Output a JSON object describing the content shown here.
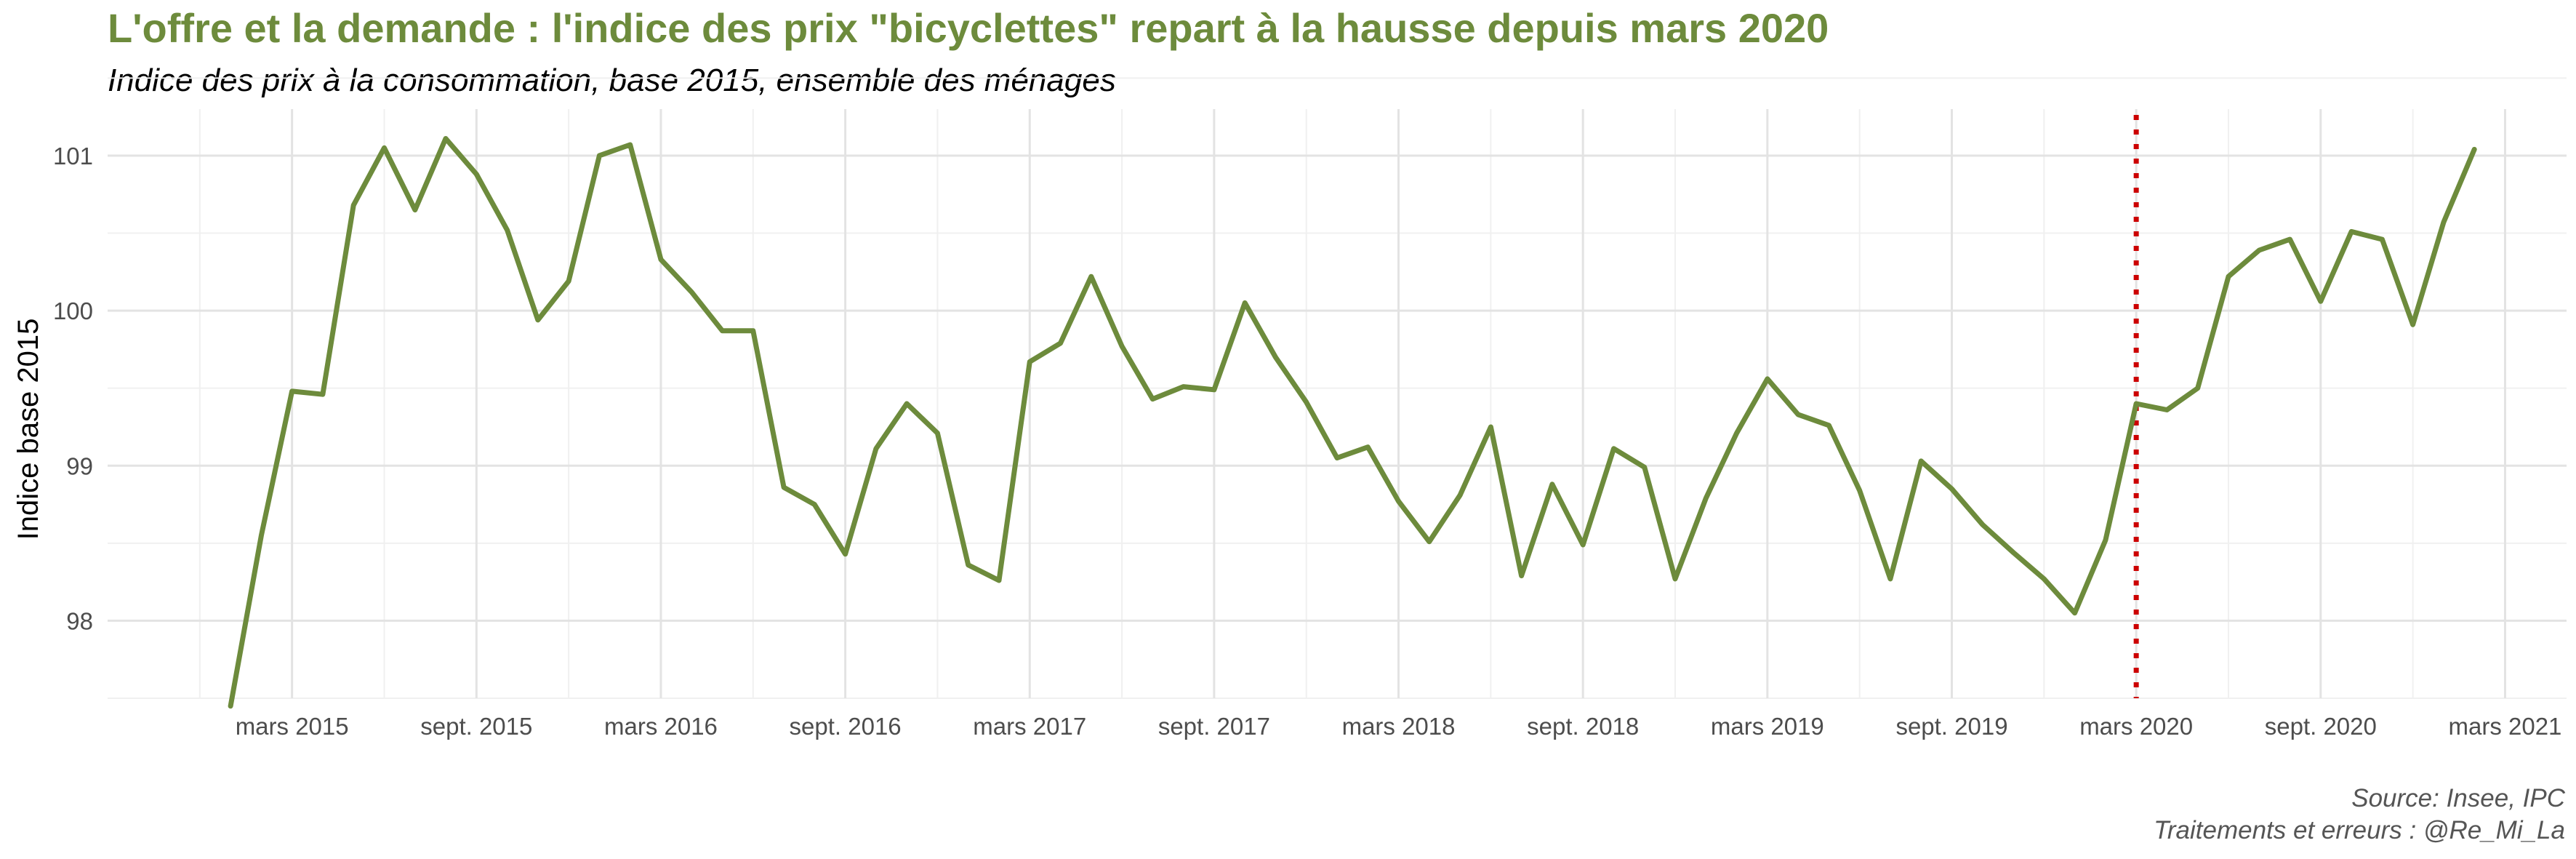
{
  "title": "L'offre et la demande : l'indice des prix \"bicyclettes\" repart à la hausse depuis mars 2020",
  "subtitle": "Indice des prix à la consommation, base 2015, ensemble des ménages",
  "source": "Source: Insee, IPC",
  "credits": "Traitements et erreurs : @Re_Mi_La",
  "colors": {
    "line": "#6d8b3c",
    "title": "#6d8b3c",
    "marker": "#cc0000",
    "grid_major": "#e3e3e3",
    "grid_minor": "#f0f0f0"
  },
  "chart_data": {
    "type": "line",
    "title": "L'offre et la demande : l'indice des prix \"bicyclettes\" repart à la hausse depuis mars 2020",
    "subtitle": "Indice des prix à la consommation, base 2015, ensemble des ménages",
    "xlabel": "",
    "ylabel": "Indice base 2015",
    "x_axis_type": "monthly date",
    "xlim": [
      "2014-09",
      "2021-05"
    ],
    "ylim": [
      97.5,
      101.3
    ],
    "y_ticks": [
      98,
      99,
      100,
      101
    ],
    "x_ticks": [
      {
        "date": "2015-03",
        "label": "mars 2015"
      },
      {
        "date": "2015-09",
        "label": "sept. 2015"
      },
      {
        "date": "2016-03",
        "label": "mars 2016"
      },
      {
        "date": "2016-09",
        "label": "sept. 2016"
      },
      {
        "date": "2017-03",
        "label": "mars 2017"
      },
      {
        "date": "2017-09",
        "label": "sept. 2017"
      },
      {
        "date": "2018-03",
        "label": "mars 2018"
      },
      {
        "date": "2018-09",
        "label": "sept. 2018"
      },
      {
        "date": "2019-03",
        "label": "mars 2019"
      },
      {
        "date": "2019-09",
        "label": "sept. 2019"
      },
      {
        "date": "2020-03",
        "label": "mars 2020"
      },
      {
        "date": "2020-09",
        "label": "sept. 2020"
      },
      {
        "date": "2021-03",
        "label": "mars 2021"
      }
    ],
    "grid": true,
    "legend": "none",
    "reference_line": {
      "date": "2020-03",
      "style": "dotted",
      "color": "#cc0000"
    },
    "series": [
      {
        "x": [
          "2015-01",
          "2015-02",
          "2015-03",
          "2015-04",
          "2015-05",
          "2015-06",
          "2015-07",
          "2015-08",
          "2015-09",
          "2015-10",
          "2015-11",
          "2015-12",
          "2016-01",
          "2016-02",
          "2016-03",
          "2016-04",
          "2016-05",
          "2016-06",
          "2016-07",
          "2016-08",
          "2016-09",
          "2016-10",
          "2016-11",
          "2016-12",
          "2017-01",
          "2017-02",
          "2017-03",
          "2017-04",
          "2017-05",
          "2017-06",
          "2017-07",
          "2017-08",
          "2017-09",
          "2017-10",
          "2017-11",
          "2017-12",
          "2018-01",
          "2018-02",
          "2018-03",
          "2018-04",
          "2018-05",
          "2018-06",
          "2018-07",
          "2018-08",
          "2018-09",
          "2018-10",
          "2018-11",
          "2018-12",
          "2019-01",
          "2019-02",
          "2019-03",
          "2019-04",
          "2019-05",
          "2019-06",
          "2019-07",
          "2019-08",
          "2019-09",
          "2019-10",
          "2019-11",
          "2019-12",
          "2020-01",
          "2020-02",
          "2020-03",
          "2020-04",
          "2020-05",
          "2020-06",
          "2020-07",
          "2020-08",
          "2020-09",
          "2020-10",
          "2020-11",
          "2020-12",
          "2021-01",
          "2021-02"
        ],
        "values": [
          97.45,
          98.55,
          99.48,
          99.46,
          100.68,
          101.05,
          100.65,
          101.11,
          100.88,
          100.52,
          99.94,
          100.19,
          101.0,
          101.07,
          100.33,
          100.12,
          99.87,
          99.87,
          98.86,
          98.75,
          98.43,
          99.11,
          99.4,
          99.21,
          98.36,
          98.26,
          99.67,
          99.79,
          100.22,
          99.77,
          99.43,
          99.51,
          99.49,
          100.05,
          99.7,
          99.41,
          99.05,
          99.12,
          98.77,
          98.51,
          98.81,
          99.25,
          98.29,
          98.88,
          98.49,
          99.11,
          98.99,
          98.27,
          98.79,
          99.21,
          99.56,
          99.33,
          99.26,
          98.84,
          98.27,
          99.03,
          98.85,
          98.62,
          98.44,
          98.27,
          98.05,
          98.52,
          99.4,
          99.36,
          99.5,
          100.22,
          100.39,
          100.46,
          100.06,
          100.51,
          100.46,
          99.91,
          100.57,
          101.04
        ]
      }
    ]
  }
}
